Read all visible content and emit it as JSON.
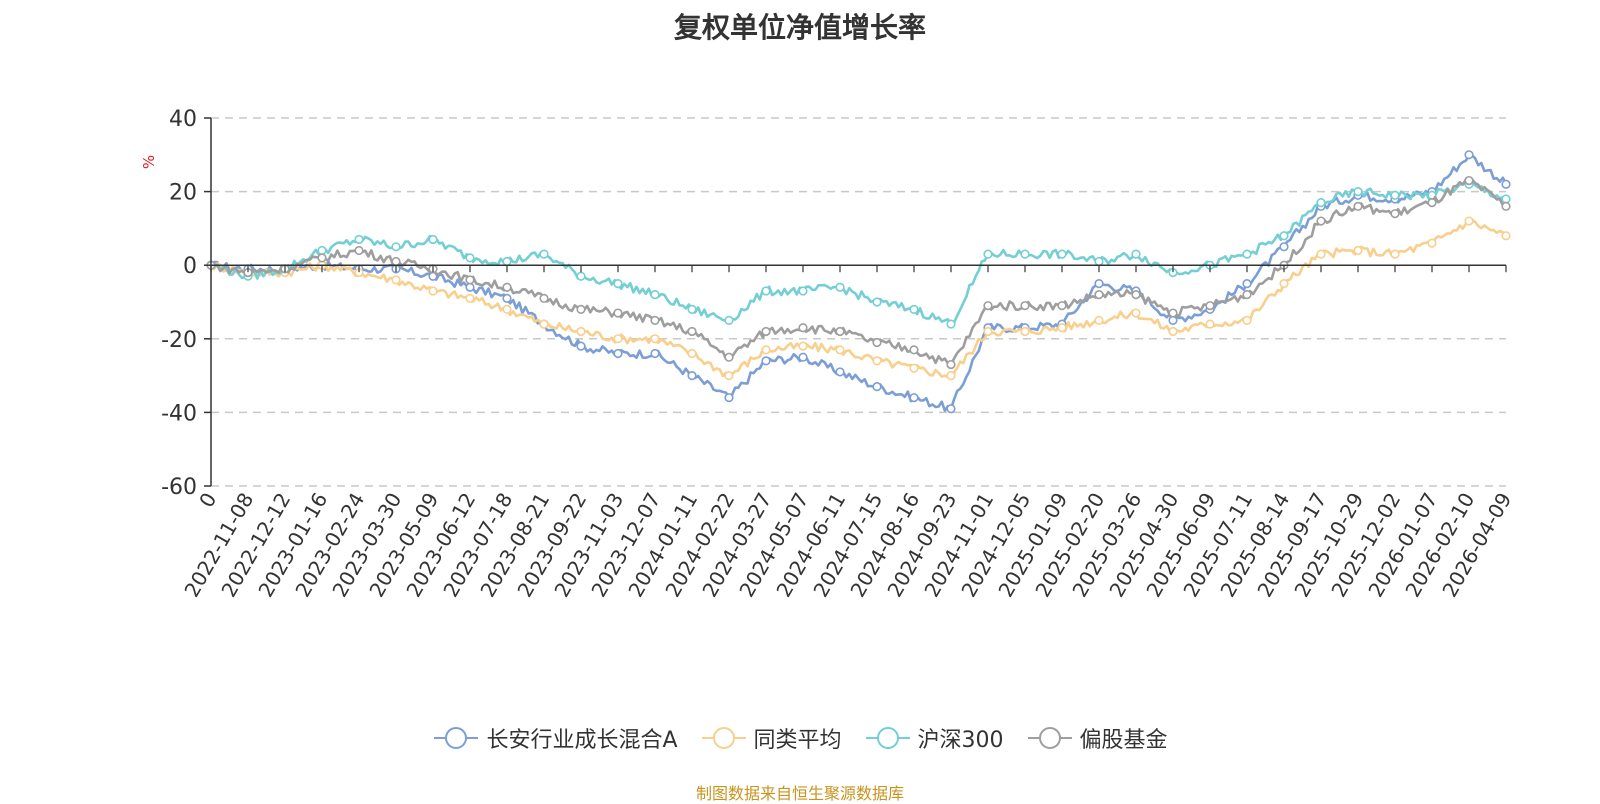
{
  "chart_data": {
    "type": "line",
    "title": "复权单位净值增长率",
    "ylabel": "%",
    "xlabel": "",
    "ylim": [
      -60,
      40
    ],
    "yticks": [
      40,
      20,
      0,
      -20,
      -40,
      -60
    ],
    "grid": true,
    "legend_position": "bottom-center",
    "categories": [
      "0",
      "2022-11-08",
      "2022-12-12",
      "2023-01-16",
      "2023-02-24",
      "2023-03-30",
      "2023-05-09",
      "2023-06-12",
      "2023-07-18",
      "2023-08-21",
      "2023-09-22",
      "2023-11-03",
      "2023-12-07",
      "2024-01-11",
      "2024-02-22",
      "2024-03-27",
      "2024-05-07",
      "2024-06-11",
      "2024-07-15",
      "2024-08-16",
      "2024-09-23",
      "2024-11-01",
      "2024-12-05",
      "2025-01-09",
      "2025-02-20",
      "2025-03-26",
      "2025-04-30",
      "2025-06-09",
      "2025-07-11",
      "2025-08-14",
      "2025-09-17",
      "2025-10-29",
      "2025-12-02",
      "2026-01-07",
      "2026-02-10",
      "2026-04-09"
    ],
    "series": [
      {
        "name": "长安行业成长混合A",
        "color": "#7b9ed6",
        "values": [
          0,
          -1,
          -1,
          0,
          -1,
          -1,
          -3,
          -6,
          -9,
          -16,
          -22,
          -24,
          -24,
          -30,
          -36,
          -26,
          -25,
          -29,
          -33,
          -36,
          -39,
          -17,
          -17,
          -16,
          -5,
          -7,
          -15,
          -12,
          -5,
          5,
          16,
          19,
          18,
          20,
          30,
          22
        ]
      },
      {
        "name": "同类平均",
        "color": "#f8cf8c",
        "values": [
          0,
          -2,
          -2,
          0,
          -2,
          -4,
          -7,
          -9,
          -12,
          -16,
          -18,
          -20,
          -20,
          -24,
          -30,
          -23,
          -22,
          -23,
          -26,
          -28,
          -30,
          -18,
          -18,
          -17,
          -15,
          -13,
          -18,
          -16,
          -15,
          -5,
          3,
          4,
          3,
          6,
          12,
          8
        ]
      },
      {
        "name": "沪深300",
        "color": "#74cfd4",
        "values": [
          0,
          -3,
          -1,
          4,
          7,
          5,
          7,
          2,
          1,
          3,
          -3,
          -5,
          -8,
          -12,
          -15,
          -7,
          -7,
          -6,
          -10,
          -12,
          -16,
          3,
          3,
          3,
          1,
          3,
          -2,
          0,
          3,
          8,
          17,
          20,
          19,
          19,
          22,
          18
        ]
      },
      {
        "name": "偏股基金",
        "color": "#9e9e9e",
        "values": [
          0,
          -2,
          -1,
          2,
          4,
          1,
          -1,
          -4,
          -6,
          -9,
          -12,
          -13,
          -15,
          -18,
          -25,
          -18,
          -17,
          -18,
          -21,
          -23,
          -27,
          -11,
          -11,
          -11,
          -8,
          -8,
          -13,
          -11,
          -8,
          0,
          12,
          16,
          14,
          17,
          23,
          16
        ]
      }
    ]
  },
  "source_note": "制图数据来自恒生聚源数据库",
  "colors": {
    "axis": "#333333",
    "grid": "#c8c8c8",
    "ylabel": "#e02020"
  }
}
